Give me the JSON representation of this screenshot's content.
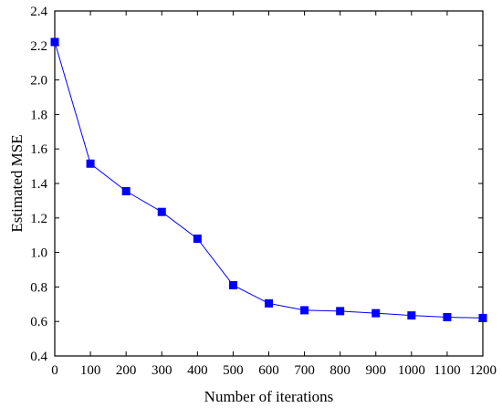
{
  "chart_data": {
    "type": "line",
    "title": "",
    "xlabel": "Number of iterations",
    "ylabel": "Estimated MSE",
    "xlim": [
      0,
      1200
    ],
    "ylim": [
      0.4,
      2.4
    ],
    "x_ticks": [
      0,
      100,
      200,
      300,
      400,
      500,
      600,
      700,
      800,
      900,
      1000,
      1100,
      1200
    ],
    "y_ticks": [
      0.4,
      0.6,
      0.8,
      1.0,
      1.2,
      1.4,
      1.6,
      1.8,
      2.0,
      2.2,
      2.4
    ],
    "y_tick_labels": [
      "0.4",
      "0.6",
      "0.8",
      "1.0",
      "1.2",
      "1.4",
      "1.6",
      "1.8",
      "2.0",
      "2.2",
      "2.4"
    ],
    "grid": false,
    "legend": "none",
    "series": [
      {
        "color": "#0000ff",
        "marker": "square",
        "x": [
          0,
          100,
          200,
          300,
          400,
          500,
          600,
          700,
          800,
          900,
          1000,
          1100,
          1200
        ],
        "y": [
          2.22,
          1.515,
          1.355,
          1.235,
          1.08,
          0.81,
          0.705,
          0.665,
          0.66,
          0.648,
          0.635,
          0.625,
          0.62
        ]
      }
    ]
  }
}
